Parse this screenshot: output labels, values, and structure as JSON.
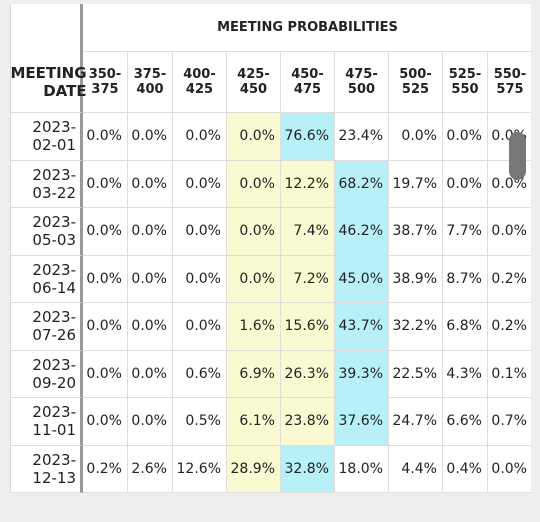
{
  "table": {
    "title": "MEETING PROBABILITIES",
    "date_header": "MEETING DATE",
    "columns": [
      "350-375",
      "375-400",
      "400-425",
      "425-450",
      "450-475",
      "475-500",
      "500-525",
      "525-550",
      "550-575"
    ],
    "current_color": "#fafad2",
    "max_color": "#b8f0f8",
    "rows": [
      {
        "date": "2023-02-01",
        "cells": [
          "0.0%",
          "0.0%",
          "0.0%",
          "0.0%",
          "76.6%",
          "23.4%",
          "0.0%",
          "0.0%",
          "0.0%"
        ],
        "current": [
          3
        ],
        "max": 4
      },
      {
        "date": "2023-03-22",
        "cells": [
          "0.0%",
          "0.0%",
          "0.0%",
          "0.0%",
          "12.2%",
          "68.2%",
          "19.7%",
          "0.0%",
          "0.0%"
        ],
        "current": [
          3,
          4
        ],
        "max": 5
      },
      {
        "date": "2023-05-03",
        "cells": [
          "0.0%",
          "0.0%",
          "0.0%",
          "0.0%",
          "7.4%",
          "46.2%",
          "38.7%",
          "7.7%",
          "0.0%"
        ],
        "current": [
          3,
          4
        ],
        "max": 5
      },
      {
        "date": "2023-06-14",
        "cells": [
          "0.0%",
          "0.0%",
          "0.0%",
          "0.0%",
          "7.2%",
          "45.0%",
          "38.9%",
          "8.7%",
          "0.2%"
        ],
        "current": [
          3,
          4
        ],
        "max": 5
      },
      {
        "date": "2023-07-26",
        "cells": [
          "0.0%",
          "0.0%",
          "0.0%",
          "1.6%",
          "15.6%",
          "43.7%",
          "32.2%",
          "6.8%",
          "0.2%"
        ],
        "current": [
          3,
          4
        ],
        "max": 5
      },
      {
        "date": "2023-09-20",
        "cells": [
          "0.0%",
          "0.0%",
          "0.6%",
          "6.9%",
          "26.3%",
          "39.3%",
          "22.5%",
          "4.3%",
          "0.1%"
        ],
        "current": [
          3,
          4
        ],
        "max": 5
      },
      {
        "date": "2023-11-01",
        "cells": [
          "0.0%",
          "0.0%",
          "0.5%",
          "6.1%",
          "23.8%",
          "37.6%",
          "24.7%",
          "6.6%",
          "0.7%"
        ],
        "current": [
          3,
          4
        ],
        "max": 5
      },
      {
        "date": "2023-12-13",
        "cells": [
          "0.2%",
          "2.6%",
          "12.6%",
          "28.9%",
          "32.8%",
          "18.0%",
          "4.4%",
          "0.4%",
          "0.0%"
        ],
        "current": [
          3
        ],
        "max": 4
      }
    ]
  }
}
